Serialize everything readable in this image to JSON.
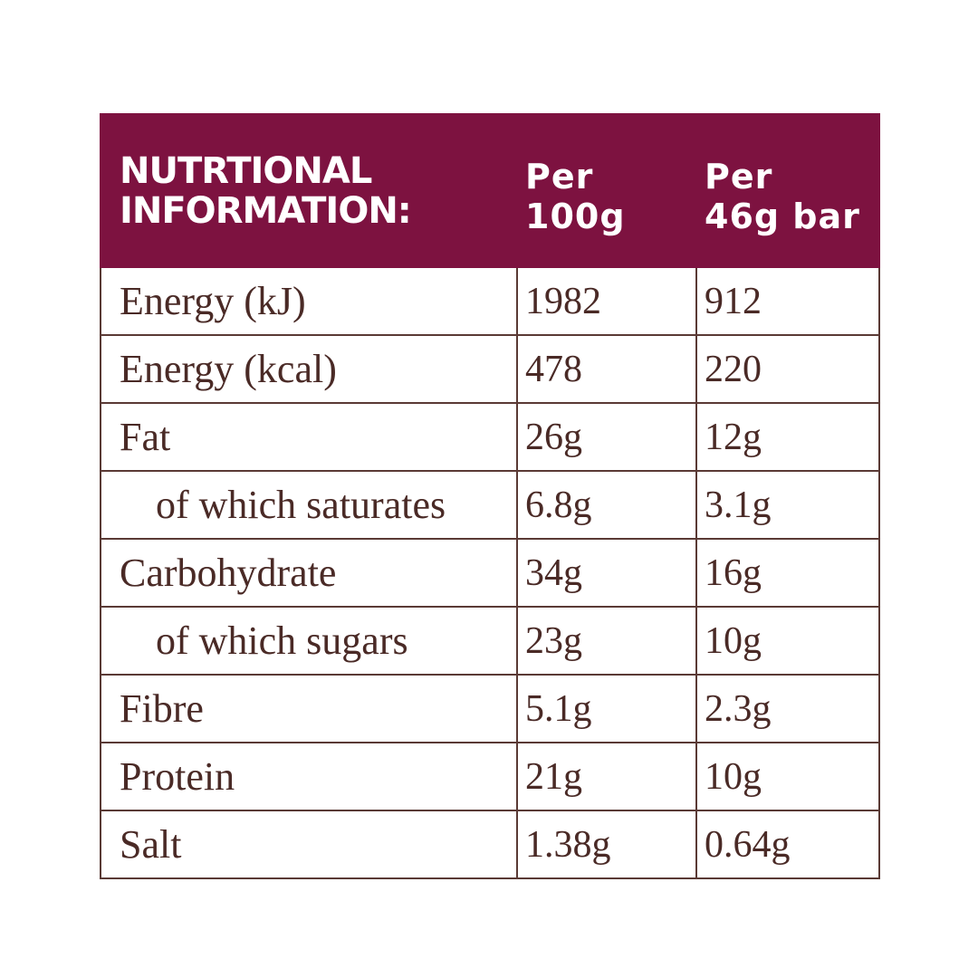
{
  "table": {
    "header": [
      [
        "NUTRTIONAL",
        "INFORMATION:"
      ],
      [
        "Per",
        "100g"
      ],
      [
        "Per",
        "46g bar"
      ]
    ],
    "rows": [
      [
        "Energy (kJ)",
        "1982",
        "912"
      ],
      [
        "Energy (kcal)",
        "478",
        "220"
      ],
      [
        "Fat",
        "26g",
        "12g"
      ],
      [
        "of which saturates",
        "6.8g",
        "3.1g"
      ],
      [
        "Carbohydrate",
        "34g",
        "16g"
      ],
      [
        "of which sugars",
        "23g",
        "10g"
      ],
      [
        "Fibre",
        "5.1g",
        "2.3g"
      ],
      [
        "Protein",
        "21g",
        "10g"
      ],
      [
        "Salt",
        "1.38g",
        "0.64g"
      ]
    ]
  }
}
